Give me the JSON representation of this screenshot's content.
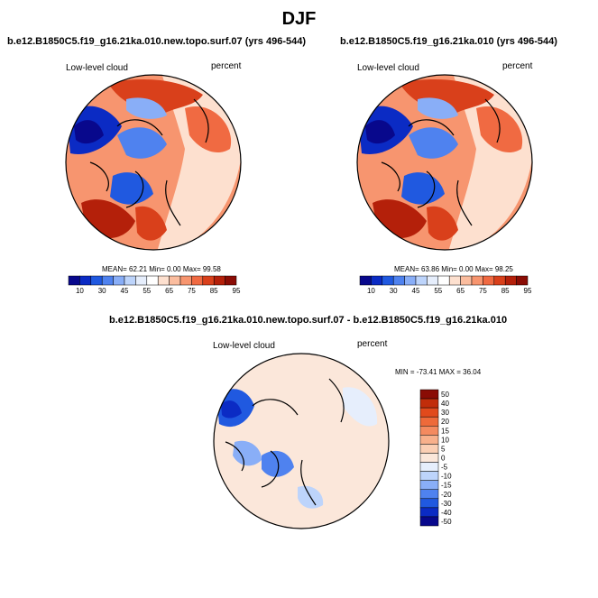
{
  "main_title": "DJF",
  "colors": {
    "hbar": [
      "#08088c",
      "#0b2bc4",
      "#2059e0",
      "#4f82ef",
      "#89aef7",
      "#bdd4fb",
      "#e6eefc",
      "#ffffff",
      "#fde0cf",
      "#fbbd9f",
      "#f7956f",
      "#f06a42",
      "#d9401b",
      "#b4200a",
      "#8a0c05"
    ],
    "vbar": [
      "#08088c",
      "#0b2bc4",
      "#2059e0",
      "#4f82ef",
      "#89aef7",
      "#bdd4fb",
      "#e6eefc",
      "#fbe7da",
      "#fbcfb4",
      "#f8b08b",
      "#f48a5f",
      "#ee6a3a",
      "#e14a1c",
      "#c12d0a",
      "#8a0c05"
    ]
  },
  "chart_data": [
    {
      "type": "heatmap",
      "title": "b.e12.B1850C5.f19_g16.21ka.010.new.topo.surf.07 (yrs 496-544)",
      "variable": "Low-level cloud",
      "units": "percent",
      "stats_text": "MEAN=  62.21  Min=   0.00  Max=  99.58",
      "mean": 62.21,
      "min": 0.0,
      "max": 99.58,
      "colorbar_levels": [
        "10",
        "30",
        "45",
        "55",
        "65",
        "75",
        "85",
        "95"
      ]
    },
    {
      "type": "heatmap",
      "title": "b.e12.B1850C5.f19_g16.21ka.010 (yrs 496-544)",
      "variable": "Low-level cloud",
      "units": "percent",
      "stats_text": "MEAN=  63.86  Min=   0.00  Max=  98.25",
      "mean": 63.86,
      "min": 0.0,
      "max": 98.25,
      "colorbar_levels": [
        "10",
        "30",
        "45",
        "55",
        "65",
        "75",
        "85",
        "95"
      ]
    },
    {
      "type": "heatmap",
      "title": "b.e12.B1850C5.f19_g16.21ka.010.new.topo.surf.07 - b.e12.B1850C5.f19_g16.21ka.010",
      "variable": "Low-level cloud",
      "units": "percent",
      "stats_text": "MIN = -73.41 MAX =  36.04",
      "min": -73.41,
      "max": 36.04,
      "colorbar_levels": [
        "50",
        "40",
        "30",
        "20",
        "15",
        "10",
        "5",
        "0",
        "-5",
        "-10",
        "-15",
        "-20",
        "-30",
        "-40",
        "-50"
      ]
    }
  ]
}
